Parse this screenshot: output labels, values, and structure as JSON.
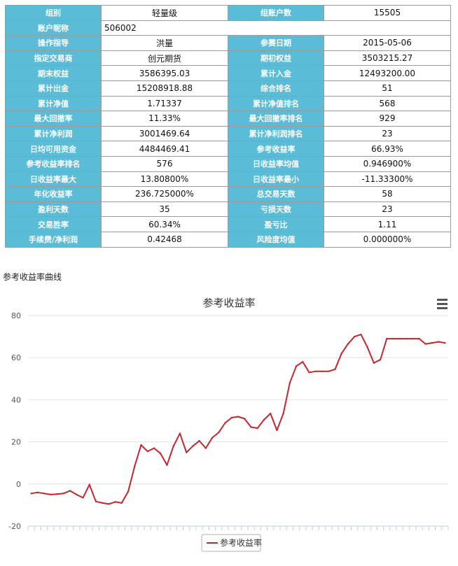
{
  "table": {
    "rows": [
      [
        {
          "label": "组别"
        },
        {
          "value": "轻量级"
        },
        {
          "label": "组账户数"
        },
        {
          "value": "15505"
        }
      ],
      [
        {
          "label": "账户昵称"
        },
        {
          "value": "506002",
          "colspan": 3,
          "align": "left"
        }
      ],
      [
        {
          "label": "操作指导"
        },
        {
          "value": "洪量"
        },
        {
          "label": "参赛日期"
        },
        {
          "value": "2015-05-06"
        }
      ],
      [
        {
          "label": "指定交易商"
        },
        {
          "value": "创元期货"
        },
        {
          "label": "期初权益"
        },
        {
          "value": "3503215.27"
        }
      ],
      [
        {
          "label": "期末权益"
        },
        {
          "value": "3586395.03"
        },
        {
          "label": "累计入金"
        },
        {
          "value": "12493200.00"
        }
      ],
      [
        {
          "label": "累计出金"
        },
        {
          "value": "15208918.88"
        },
        {
          "label": "综合排名"
        },
        {
          "value": "51"
        }
      ],
      [
        {
          "label": "累计净值"
        },
        {
          "value": "1.71337"
        },
        {
          "label": "累计净值排名"
        },
        {
          "value": "568"
        }
      ],
      [
        {
          "label": "最大回撤率"
        },
        {
          "value": "11.33%"
        },
        {
          "label": "最大回撤率排名"
        },
        {
          "value": "929"
        }
      ],
      [
        {
          "label": "累计净利润"
        },
        {
          "value": "3001469.64"
        },
        {
          "label": "累计净利润排名"
        },
        {
          "value": "23"
        }
      ],
      [
        {
          "label": "日均可用资金"
        },
        {
          "value": "4484469.41"
        },
        {
          "label": "参考收益率"
        },
        {
          "value": "66.93%"
        }
      ],
      [
        {
          "label": "参考收益率排名"
        },
        {
          "value": "576"
        },
        {
          "label": "日收益率均值"
        },
        {
          "value": "0.946900%"
        }
      ],
      [
        {
          "label": "日收益率最大"
        },
        {
          "value": "13.80800%"
        },
        {
          "label": "日收益率最小"
        },
        {
          "value": "-11.33300%"
        }
      ],
      [
        {
          "label": "年化收益率"
        },
        {
          "value": "236.725000%"
        },
        {
          "label": "总交易天数"
        },
        {
          "value": "58"
        }
      ],
      [
        {
          "label": "盈利天数"
        },
        {
          "value": "35"
        },
        {
          "label": "亏损天数"
        },
        {
          "value": "23"
        }
      ],
      [
        {
          "label": "交易胜率"
        },
        {
          "value": "60.34%"
        },
        {
          "label": "盈亏比"
        },
        {
          "value": "1.11"
        }
      ],
      [
        {
          "label": "手续费/净利润"
        },
        {
          "value": "0.42468"
        },
        {
          "label": "风险度均值"
        },
        {
          "value": "0.000000%"
        }
      ]
    ]
  },
  "section_title": "参考收益率曲线",
  "chart_data": {
    "type": "line",
    "title": "参考收益率",
    "ylim": [
      -20,
      80
    ],
    "yticks": [
      -20,
      0,
      20,
      40,
      60,
      80
    ],
    "grid": true,
    "legend": "bottom",
    "series": [
      {
        "name": "参考收益率",
        "color": "#c8252c",
        "values": [
          -4.5,
          -4,
          -4.5,
          -5,
          -4.8,
          -4.5,
          -3.2,
          -5,
          -6.5,
          -0.3,
          -8.3,
          -9,
          -9.5,
          -8.5,
          -9,
          -3.5,
          8.5,
          18.5,
          15.5,
          17,
          14.5,
          9,
          18,
          24,
          15,
          18,
          20.5,
          17,
          22,
          24.5,
          29,
          31.5,
          32,
          31,
          27,
          26.5,
          30.5,
          33.5,
          25.5,
          33.5,
          48,
          56,
          58,
          53,
          53.5,
          53.5,
          53.5,
          54.5,
          62,
          66.5,
          70,
          71,
          65,
          57.5,
          59,
          69,
          69,
          69,
          69,
          69,
          69,
          66.5,
          67,
          67.5,
          67
        ]
      }
    ]
  },
  "icons": {
    "menu": "menu-icon"
  }
}
